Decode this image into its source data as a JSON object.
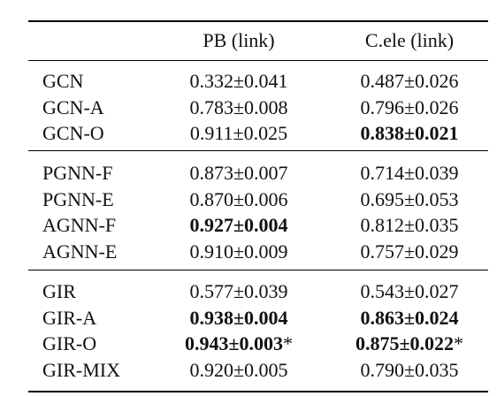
{
  "table": {
    "header": [
      "",
      "PB (link)",
      "C.ele (link)"
    ],
    "groups": [
      {
        "rows": [
          [
            "GCN",
            {
              "text": "0.332±0.041"
            },
            {
              "text": "0.487±0.026"
            }
          ],
          [
            "GCN-A",
            {
              "text": "0.783±0.008"
            },
            {
              "text": "0.796±0.026"
            }
          ],
          [
            "GCN-O",
            {
              "text": "0.911±0.025"
            },
            {
              "text": "0.838±0.021",
              "bold": true
            }
          ]
        ]
      },
      {
        "rows": [
          [
            "PGNN-F",
            {
              "text": "0.873±0.007"
            },
            {
              "text": "0.714±0.039"
            }
          ],
          [
            "PGNN-E",
            {
              "text": "0.870±0.006"
            },
            {
              "text": "0.695±0.053"
            }
          ],
          [
            "AGNN-F",
            {
              "text": "0.927±0.004",
              "bold": true
            },
            {
              "text": "0.812±0.035"
            }
          ],
          [
            "AGNN-E",
            {
              "text": "0.910±0.009"
            },
            {
              "text": "0.757±0.029"
            }
          ]
        ]
      },
      {
        "rows": [
          [
            "GIR",
            {
              "text": "0.577±0.039"
            },
            {
              "text": "0.543±0.027"
            }
          ],
          [
            "GIR-A",
            {
              "text": "0.938±0.004",
              "bold": true
            },
            {
              "text": "0.863±0.024",
              "bold": true
            }
          ],
          [
            "GIR-O",
            {
              "text": "0.943±0.003",
              "bold": true,
              "suffix": "*"
            },
            {
              "text": "0.875±0.022",
              "bold": true,
              "suffix": "*"
            }
          ],
          [
            "GIR-MIX",
            {
              "text": "0.920±0.005"
            },
            {
              "text": "0.790±0.035"
            }
          ]
        ]
      }
    ]
  }
}
